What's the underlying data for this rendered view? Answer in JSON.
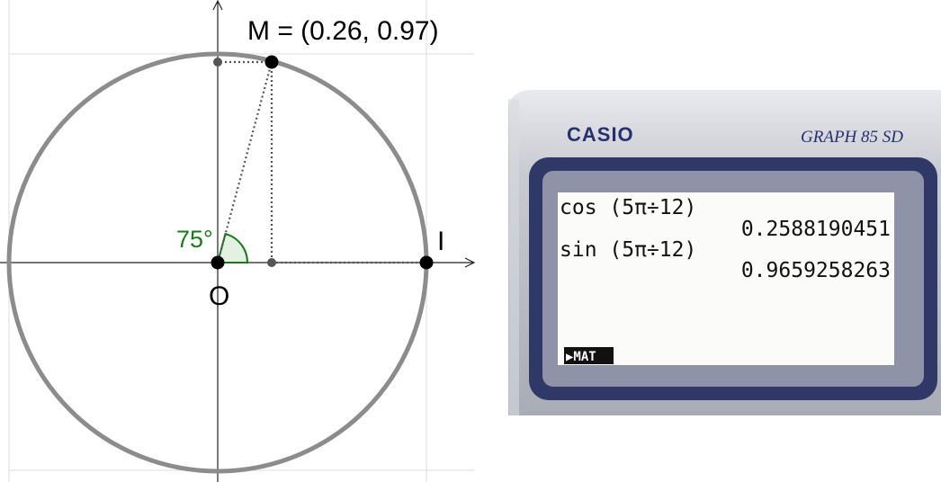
{
  "figure": {
    "point_m_label": "M = (0.26, 0.97)",
    "point_i_label": "I",
    "point_o_label": "O",
    "angle_label": "75°"
  },
  "calculator": {
    "brand": "CASIO",
    "model": "GRAPH 85 SD",
    "lines": [
      "cos (5π÷12)",
      "0.2588190451",
      "sin (5π÷12)",
      "0.9659258263"
    ],
    "menu_tab": "▶MAT"
  }
}
